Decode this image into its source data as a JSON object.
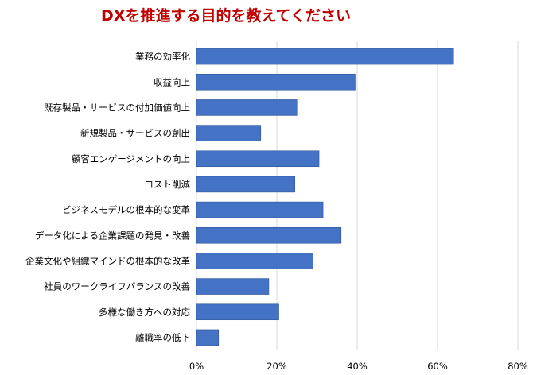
{
  "colors": {
    "title": "#c00000",
    "bar": "#4472c4",
    "bar_edge": "#2f5597",
    "grid": "#d9d9d9",
    "label": "#000000"
  },
  "chart_data": {
    "type": "bar",
    "orientation": "horizontal",
    "title": "DXを推進する目的を教えてください",
    "xlabel": "",
    "ylabel": "",
    "xlim": [
      0,
      80
    ],
    "x_ticks": [
      "0%",
      "20%",
      "40%",
      "60%",
      "80%"
    ],
    "grid": true,
    "legend": "none",
    "categories": [
      "業務の効率化",
      "収益向上",
      "既存製品・サービスの付加価値向上",
      "新規製品・サービスの創出",
      "顧客エンゲージメントの向上",
      "コスト削減",
      "ビジネスモデルの根本的な変革",
      "データ化による企業課題の発見・改善",
      "企業文化や組織マインドの根本的な改革",
      "社員のワークライフバランスの改善",
      "多様な働き方への対応",
      "離職率の低下"
    ],
    "values": [
      64,
      39.5,
      25,
      16,
      30.5,
      24.5,
      31.5,
      36,
      29,
      18,
      20.5,
      5.5
    ]
  }
}
